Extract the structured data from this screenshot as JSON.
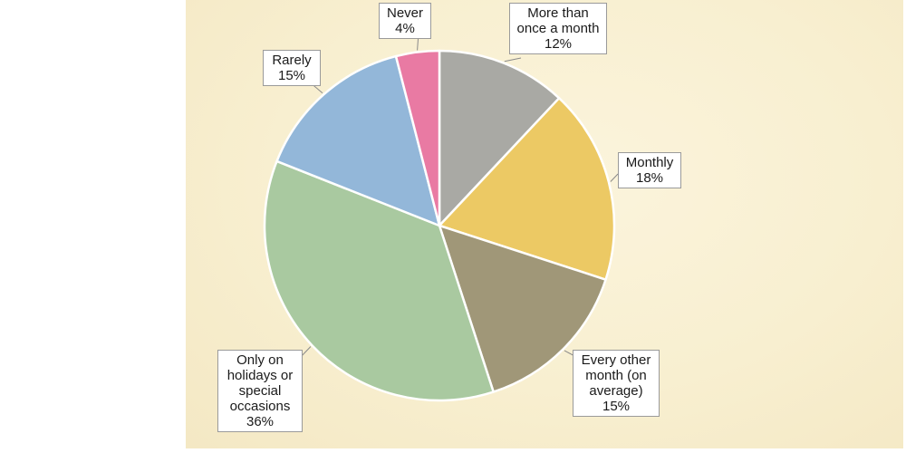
{
  "chart_data": {
    "type": "pie",
    "title": "",
    "slices": [
      {
        "label": "More than once a month",
        "value": 12,
        "value_label": "12%",
        "color": "#a9a9a4"
      },
      {
        "label": "Monthly",
        "value": 18,
        "value_label": "18%",
        "color": "#ecc964"
      },
      {
        "label": "Every other month (on average)",
        "value": 15,
        "value_label": "15%",
        "color": "#a09778"
      },
      {
        "label": "Only on holidays or special occasions",
        "value": 36,
        "value_label": "36%",
        "color": "#a9c9a0"
      },
      {
        "label": "Rarely",
        "value": 15,
        "value_label": "15%",
        "color": "#93b7d9"
      },
      {
        "label": "Never",
        "value": 4,
        "value_label": "4%",
        "color": "#e97aa3"
      }
    ],
    "callout_lines": [
      [
        "More than",
        "once a month"
      ],
      [
        "Monthly"
      ],
      [
        "Every other",
        "month (on",
        "average)"
      ],
      [
        "Only on",
        "holidays or",
        "special",
        "occasions"
      ],
      [
        "Rarely"
      ],
      [
        "Never"
      ]
    ],
    "legend": "none",
    "background_color": "#f8efd0"
  }
}
